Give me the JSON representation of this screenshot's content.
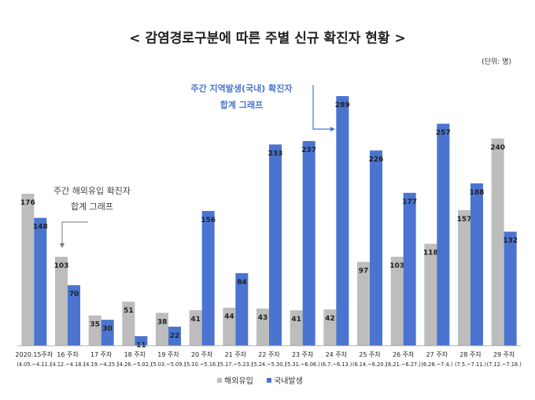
{
  "chart_data": {
    "type": "bar",
    "title": "< 감염경로구분에 따른 주별 신규 확진자 현황 >",
    "unit_label": "(단위: 명)",
    "categories": [
      {
        "label": "2020.15주차",
        "range": "(4.05.~4.11.)"
      },
      {
        "label": "16 주차",
        "range": "(4.12.~4.18.)"
      },
      {
        "label": "17 주차",
        "range": "(4.19.~4.25.)"
      },
      {
        "label": "18 주차",
        "range": "(4.26.~5.02.)"
      },
      {
        "label": "19 주차",
        "range": "(5.03.~5.09.)"
      },
      {
        "label": "20 주차",
        "range": "(5.10.~5.16.)"
      },
      {
        "label": "21 주차",
        "range": "(5.17.~5.23.)"
      },
      {
        "label": "22 주차",
        "range": "(5.24.~5.30.)"
      },
      {
        "label": "23 주차",
        "range": "(5.31.~6.06.)"
      },
      {
        "label": "24 주차",
        "range": "(6.7.~6.13.)"
      },
      {
        "label": "25 주차",
        "range": "(6.14.~6.20.)"
      },
      {
        "label": "26 주차",
        "range": "(6.21.~6.27.)"
      },
      {
        "label": "27 주차",
        "range": "(6.28.~7.4.)"
      },
      {
        "label": "28 주차",
        "range": "(7.5.~7.11.)"
      },
      {
        "label": "29 주차",
        "range": "(7.12.~7.18.)"
      }
    ],
    "series": [
      {
        "name": "해외유입",
        "color": "#bdbdbd",
        "values": [
          176,
          103,
          35,
          51,
          38,
          41,
          44,
          43,
          41,
          42,
          97,
          103,
          118,
          157,
          240
        ]
      },
      {
        "name": "국내발생",
        "color": "#4a74d0",
        "values": [
          148,
          70,
          30,
          11,
          22,
          156,
          84,
          233,
          237,
          289,
          226,
          177,
          257,
          188,
          132
        ]
      }
    ],
    "ylim": [
      0,
      300
    ],
    "grid": false,
    "legend_position": "bottom",
    "annotations": [
      {
        "lines": [
          "주간 지역발생(국내) 확진자",
          "합계 그래프"
        ],
        "color": "#4a74d0",
        "points_to": "24 주차"
      },
      {
        "lines": [
          "주간 해외유입 확진자",
          "합계 그래프"
        ],
        "color": "#444444",
        "points_to": "16 주차"
      }
    ]
  }
}
